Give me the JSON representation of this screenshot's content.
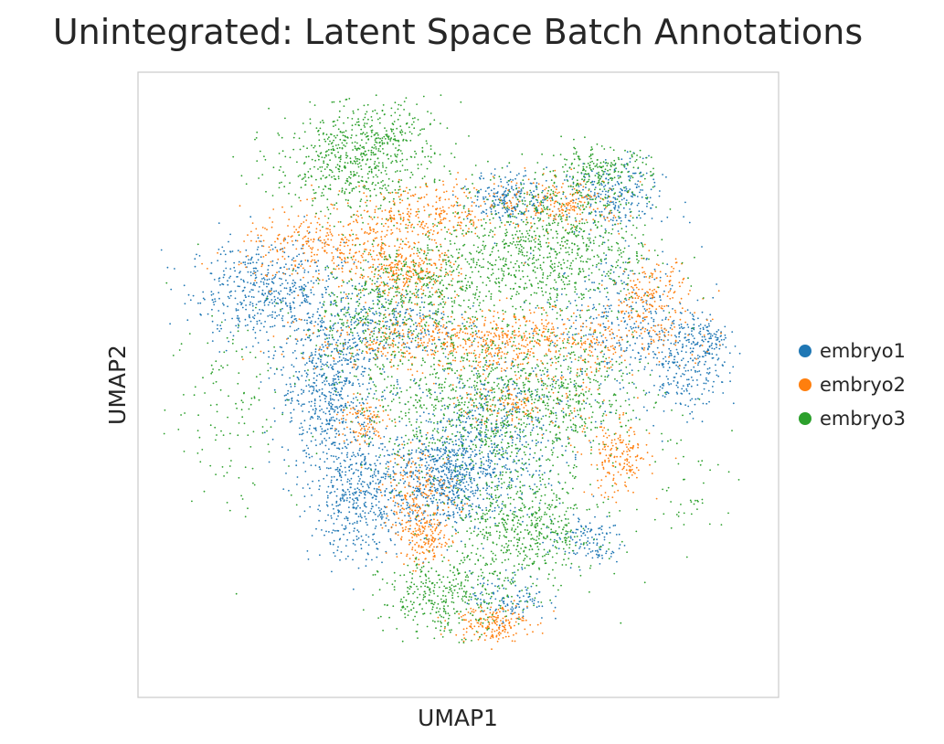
{
  "chart_data": {
    "type": "scatter",
    "title": "Unintegrated: Latent Space Batch Annotations",
    "xlabel": "UMAP1",
    "ylabel": "UMAP2",
    "xlim": [
      0,
      100
    ],
    "ylim": [
      0,
      100
    ],
    "grid": false,
    "ticks": false,
    "legend_position": "right",
    "series": [
      {
        "name": "embryo1",
        "color": "#1f77b4",
        "clusters": [
          {
            "cx": 20,
            "cy": 65,
            "sx": 6,
            "sy": 4,
            "n": 500
          },
          {
            "cx": 30,
            "cy": 50,
            "sx": 4,
            "sy": 7,
            "n": 700
          },
          {
            "cx": 35,
            "cy": 32,
            "sx": 4,
            "sy": 5,
            "n": 500
          },
          {
            "cx": 48,
            "cy": 35,
            "sx": 4,
            "sy": 4,
            "n": 600
          },
          {
            "cx": 55,
            "cy": 42,
            "sx": 6,
            "sy": 6,
            "n": 500
          },
          {
            "cx": 58,
            "cy": 80,
            "sx": 3,
            "sy": 2,
            "n": 220
          },
          {
            "cx": 74,
            "cy": 80,
            "sx": 4,
            "sy": 3,
            "n": 260
          },
          {
            "cx": 76,
            "cy": 60,
            "sx": 6,
            "sy": 6,
            "n": 350
          },
          {
            "cx": 85,
            "cy": 53,
            "sx": 3,
            "sy": 4,
            "n": 220
          },
          {
            "cx": 89,
            "cy": 57,
            "sx": 1.5,
            "sy": 2,
            "n": 90
          },
          {
            "cx": 70,
            "cy": 25,
            "sx": 3,
            "sy": 2,
            "n": 120
          },
          {
            "cx": 58,
            "cy": 16,
            "sx": 3,
            "sy": 2,
            "n": 120
          },
          {
            "cx": 40,
            "cy": 60,
            "sx": 5,
            "sy": 3,
            "n": 250
          }
        ]
      },
      {
        "name": "embryo2",
        "color": "#ff7f0e",
        "clusters": [
          {
            "cx": 30,
            "cy": 72,
            "sx": 7,
            "sy": 3,
            "n": 350
          },
          {
            "cx": 45,
            "cy": 77,
            "sx": 6,
            "sy": 2.5,
            "n": 300
          },
          {
            "cx": 55,
            "cy": 57,
            "sx": 14,
            "sy": 2.5,
            "n": 800
          },
          {
            "cx": 42,
            "cy": 68,
            "sx": 4,
            "sy": 2,
            "n": 250
          },
          {
            "cx": 66,
            "cy": 79,
            "sx": 5,
            "sy": 2,
            "n": 220
          },
          {
            "cx": 80,
            "cy": 64,
            "sx": 3,
            "sy": 3,
            "n": 180
          },
          {
            "cx": 75,
            "cy": 38,
            "sx": 2.5,
            "sy": 3,
            "n": 180
          },
          {
            "cx": 44,
            "cy": 32,
            "sx": 3,
            "sy": 4,
            "n": 220
          },
          {
            "cx": 45,
            "cy": 25,
            "sx": 2,
            "sy": 2,
            "n": 120
          },
          {
            "cx": 55,
            "cy": 12,
            "sx": 3,
            "sy": 1.5,
            "n": 180
          },
          {
            "cx": 35,
            "cy": 44,
            "sx": 2,
            "sy": 2,
            "n": 100
          },
          {
            "cx": 60,
            "cy": 47,
            "sx": 5,
            "sy": 2,
            "n": 150
          }
        ]
      },
      {
        "name": "embryo3",
        "color": "#2ca02c",
        "clusters": [
          {
            "cx": 33,
            "cy": 85,
            "sx": 6,
            "sy": 4,
            "n": 500
          },
          {
            "cx": 64,
            "cy": 72,
            "sx": 8,
            "sy": 6,
            "n": 900
          },
          {
            "cx": 53,
            "cy": 47,
            "sx": 9,
            "sy": 6,
            "n": 900
          },
          {
            "cx": 60,
            "cy": 27,
            "sx": 6,
            "sy": 5,
            "n": 600
          },
          {
            "cx": 48,
            "cy": 16,
            "sx": 5,
            "sy": 3,
            "n": 350
          },
          {
            "cx": 45,
            "cy": 66,
            "sx": 6,
            "sy": 4,
            "n": 350
          },
          {
            "cx": 72,
            "cy": 84,
            "sx": 4,
            "sy": 2,
            "n": 200
          },
          {
            "cx": 15,
            "cy": 47,
            "sx": 5,
            "sy": 9,
            "n": 130
          },
          {
            "cx": 86,
            "cy": 34,
            "sx": 5,
            "sy": 5,
            "n": 50
          },
          {
            "cx": 38,
            "cy": 90,
            "sx": 5,
            "sy": 3,
            "n": 200
          },
          {
            "cx": 35,
            "cy": 60,
            "sx": 5,
            "sy": 5,
            "n": 250
          },
          {
            "cx": 70,
            "cy": 50,
            "sx": 5,
            "sy": 5,
            "n": 250
          }
        ]
      }
    ]
  }
}
